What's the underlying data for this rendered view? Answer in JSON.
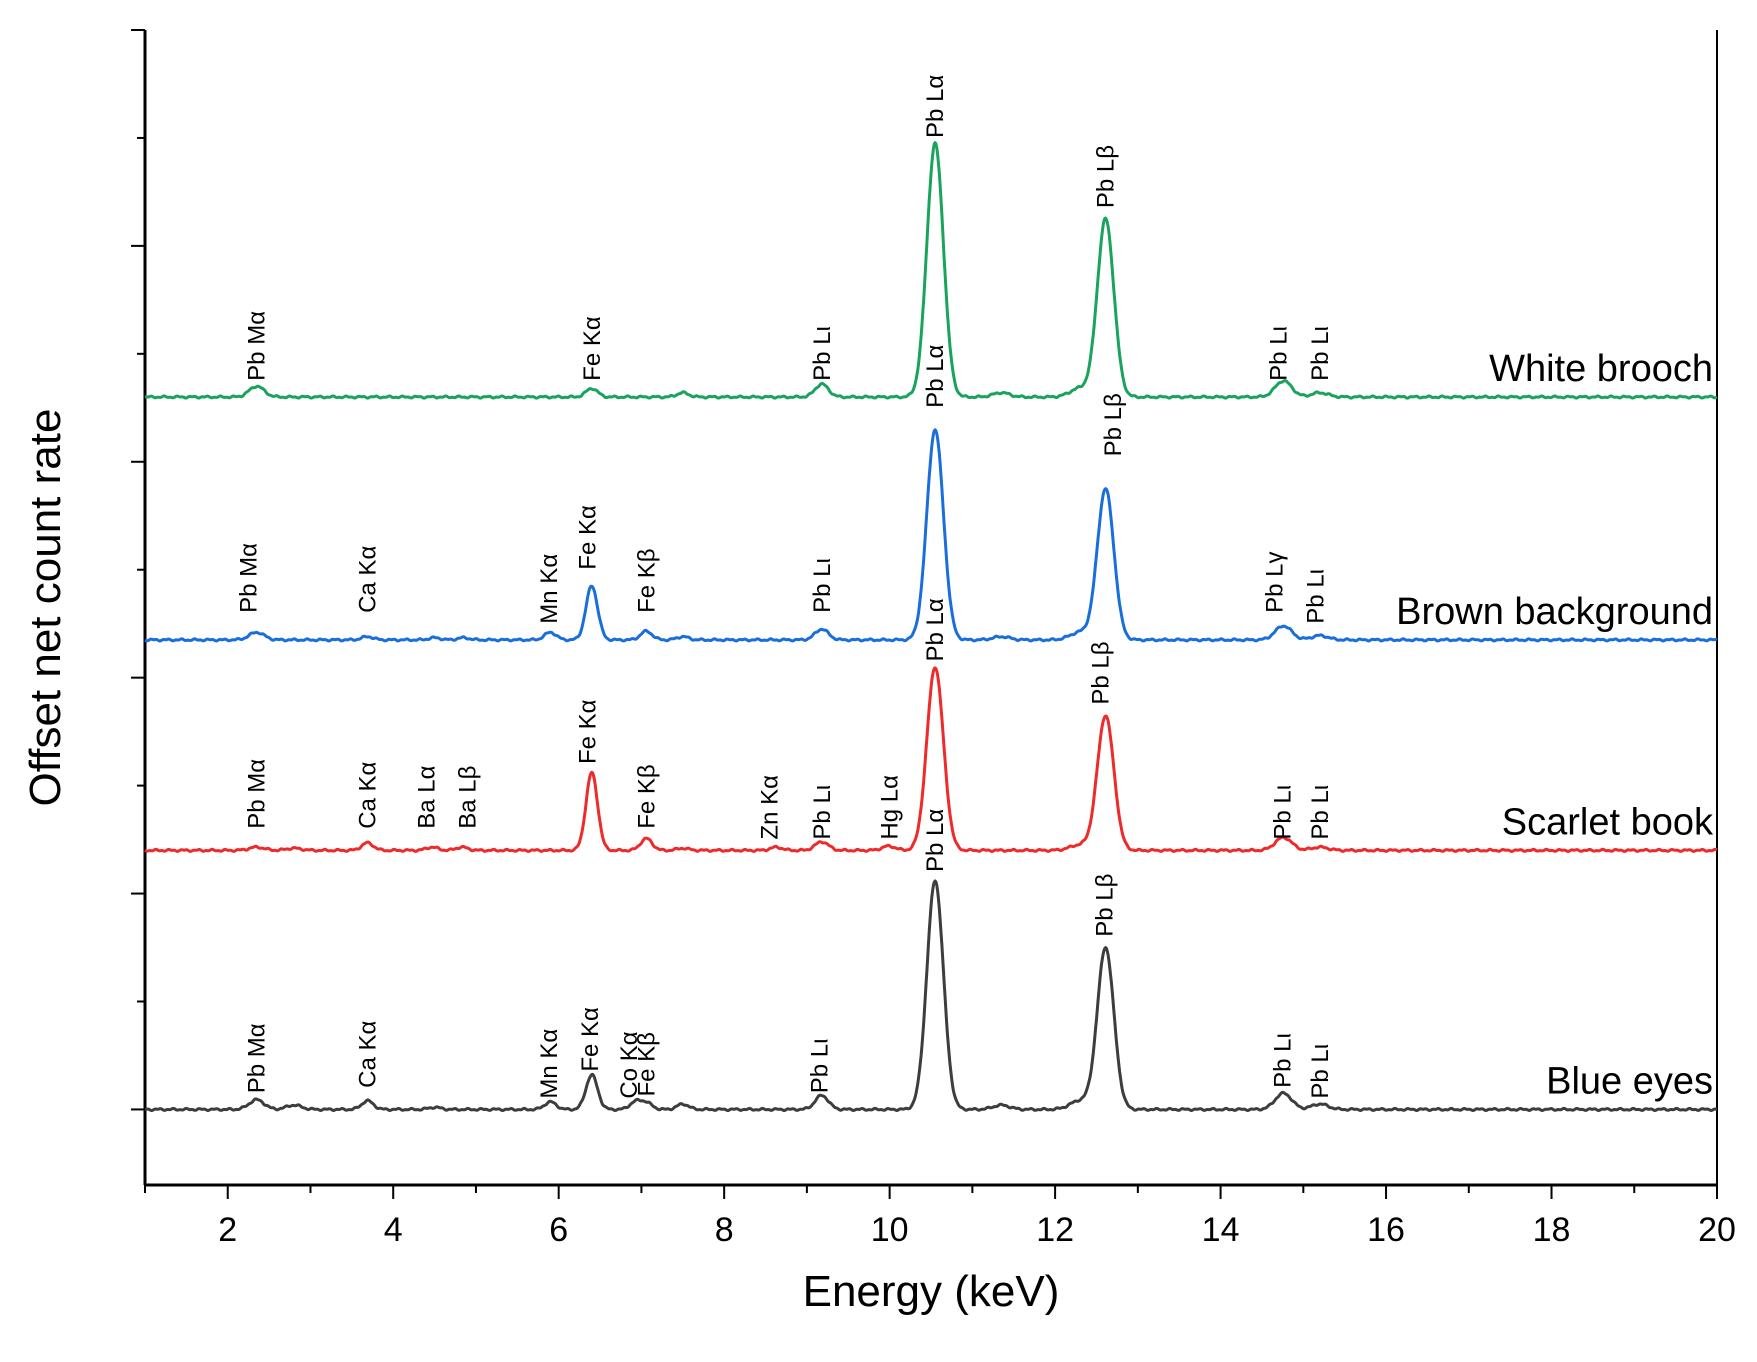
{
  "chart_data": {
    "type": "line",
    "xlabel": "Energy (keV)",
    "ylabel": "Offset net count rate",
    "xlim": [
      1,
      20
    ],
    "ylim": [
      -0.7,
      10.0
    ],
    "x_ticks": [
      2,
      4,
      6,
      8,
      10,
      12,
      14,
      16,
      18,
      20
    ],
    "y_ticks_unlabeled": [
      0,
      1,
      2,
      3,
      4,
      5,
      6,
      7,
      8,
      9,
      10
    ],
    "legend": "series labels at right end of each trace",
    "series": [
      {
        "name": "White brooch",
        "color": "#19a35c",
        "offset": 6.6,
        "peaks": [
          {
            "element": "Pb",
            "line": "Mα",
            "x": 2.35,
            "h": 0.1,
            "w": 0.09
          },
          {
            "element": "Fe",
            "line": "Kα",
            "x": 6.4,
            "h": 0.08,
            "w": 0.07
          },
          {
            "element": "",
            "line": "",
            "x": 7.5,
            "h": 0.04,
            "w": 0.07
          },
          {
            "element": "Pb",
            "line": "Lι",
            "x": 9.18,
            "h": 0.12,
            "w": 0.08
          },
          {
            "element": "Pb",
            "line": "Lα",
            "x": 10.55,
            "h": 2.35,
            "w": 0.1
          },
          {
            "element": "",
            "line": "",
            "x": 11.35,
            "h": 0.04,
            "w": 0.1
          },
          {
            "element": "Pb",
            "line": "Lβ",
            "x": 12.61,
            "h": 1.65,
            "w": 0.1
          },
          {
            "element": "",
            "line": "",
            "x": 12.3,
            "h": 0.08,
            "w": 0.12
          },
          {
            "element": "Pb",
            "line": "Lι",
            "x": 14.76,
            "h": 0.15,
            "w": 0.1
          },
          {
            "element": "Pb",
            "line": "Lι",
            "x": 15.2,
            "h": 0.04,
            "w": 0.1
          }
        ],
        "labels": [
          {
            "text": "Pb Mα",
            "x": 2.35,
            "y": 6.75
          },
          {
            "text": "Fe Kα",
            "x": 6.4,
            "y": 6.75
          },
          {
            "text": "Pb Lι",
            "x": 9.18,
            "y": 6.75
          },
          {
            "text": "Pb Lα",
            "x": 10.55,
            "y": 9.0
          },
          {
            "text": "Pb Lβ",
            "x": 12.61,
            "y": 8.35
          },
          {
            "text": "Pb Lι",
            "x": 14.7,
            "y": 6.75
          },
          {
            "text": "Pb Lι",
            "x": 15.2,
            "y": 6.75
          }
        ]
      },
      {
        "name": "Brown background",
        "color": "#1a6edb",
        "offset": 4.35,
        "peaks": [
          {
            "element": "Pb",
            "line": "Mα",
            "x": 2.35,
            "h": 0.07,
            "w": 0.09
          },
          {
            "element": "Ca",
            "line": "Kα",
            "x": 3.69,
            "h": 0.03,
            "w": 0.07
          },
          {
            "element": "",
            "line": "",
            "x": 4.5,
            "h": 0.02,
            "w": 0.07
          },
          {
            "element": "",
            "line": "",
            "x": 4.85,
            "h": 0.02,
            "w": 0.07
          },
          {
            "element": "Mn",
            "line": "Kα",
            "x": 5.9,
            "h": 0.07,
            "w": 0.07
          },
          {
            "element": "Fe",
            "line": "Kα",
            "x": 6.4,
            "h": 0.5,
            "w": 0.07
          },
          {
            "element": "Fe",
            "line": "Kβ",
            "x": 7.06,
            "h": 0.08,
            "w": 0.07
          },
          {
            "element": "",
            "line": "",
            "x": 7.5,
            "h": 0.03,
            "w": 0.07
          },
          {
            "element": "Pb",
            "line": "Lι",
            "x": 9.18,
            "h": 0.1,
            "w": 0.08
          },
          {
            "element": "Pb",
            "line": "Lα",
            "x": 10.55,
            "h": 1.95,
            "w": 0.1
          },
          {
            "element": "",
            "line": "",
            "x": 11.35,
            "h": 0.03,
            "w": 0.1
          },
          {
            "element": "Pb",
            "line": "Lβ",
            "x": 12.61,
            "h": 1.4,
            "w": 0.1
          },
          {
            "element": "",
            "line": "",
            "x": 12.3,
            "h": 0.07,
            "w": 0.12
          },
          {
            "element": "Pb",
            "line": "Lγ",
            "x": 14.76,
            "h": 0.13,
            "w": 0.1
          },
          {
            "element": "Pb",
            "line": "Lι",
            "x": 15.2,
            "h": 0.04,
            "w": 0.1
          }
        ],
        "labels": [
          {
            "text": "Pb Mα",
            "x": 2.25,
            "y": 4.6
          },
          {
            "text": "Ca Kα",
            "x": 3.69,
            "y": 4.6
          },
          {
            "text": "Mn Kα",
            "x": 5.88,
            "y": 4.5
          },
          {
            "text": "Fe Kα",
            "x": 6.35,
            "y": 5.0
          },
          {
            "text": "Fe Kβ",
            "x": 7.06,
            "y": 4.6
          },
          {
            "text": "Pb Lι",
            "x": 9.18,
            "y": 4.6
          },
          {
            "text": "Pb Lα",
            "x": 10.55,
            "y": 6.5
          },
          {
            "text": "Pb Lβ",
            "x": 12.7,
            "y": 6.05
          },
          {
            "text": "Pb Lγ",
            "x": 14.65,
            "y": 4.6
          },
          {
            "text": "Pb Lι",
            "x": 15.15,
            "y": 4.5
          }
        ]
      },
      {
        "name": "Scarlet book",
        "color": "#ee2a2a",
        "offset": 2.4,
        "peaks": [
          {
            "element": "Pb",
            "line": "Mα",
            "x": 2.35,
            "h": 0.03,
            "w": 0.09
          },
          {
            "element": "",
            "line": "",
            "x": 2.8,
            "h": 0.02,
            "w": 0.09
          },
          {
            "element": "Ca",
            "line": "Kα",
            "x": 3.69,
            "h": 0.07,
            "w": 0.07
          },
          {
            "element": "Ba",
            "line": "Lα",
            "x": 4.47,
            "h": 0.03,
            "w": 0.07
          },
          {
            "element": "Ba",
            "line": "Lβ",
            "x": 4.83,
            "h": 0.03,
            "w": 0.07
          },
          {
            "element": "Fe",
            "line": "Kα",
            "x": 6.4,
            "h": 0.72,
            "w": 0.07
          },
          {
            "element": "Fe",
            "line": "Kβ",
            "x": 7.06,
            "h": 0.11,
            "w": 0.07
          },
          {
            "element": "",
            "line": "",
            "x": 7.5,
            "h": 0.02,
            "w": 0.07
          },
          {
            "element": "Zn",
            "line": "Kα",
            "x": 8.63,
            "h": 0.03,
            "w": 0.07
          },
          {
            "element": "Pb",
            "line": "Lι",
            "x": 9.18,
            "h": 0.08,
            "w": 0.08
          },
          {
            "element": "Hg",
            "line": "Lα",
            "x": 9.99,
            "h": 0.04,
            "w": 0.08
          },
          {
            "element": "Pb",
            "line": "Lα",
            "x": 10.55,
            "h": 1.7,
            "w": 0.1
          },
          {
            "element": "Pb",
            "line": "Lβ",
            "x": 12.61,
            "h": 1.25,
            "w": 0.1
          },
          {
            "element": "",
            "line": "",
            "x": 12.3,
            "h": 0.05,
            "w": 0.12
          },
          {
            "element": "Pb",
            "line": "Lι",
            "x": 14.76,
            "h": 0.12,
            "w": 0.1
          },
          {
            "element": "Pb",
            "line": "Lι",
            "x": 15.2,
            "h": 0.03,
            "w": 0.1
          }
        ],
        "labels": [
          {
            "text": "Pb Mα",
            "x": 2.35,
            "y": 2.6
          },
          {
            "text": "Ca Kα",
            "x": 3.69,
            "y": 2.6
          },
          {
            "text": "Ba Lα",
            "x": 4.4,
            "y": 2.6
          },
          {
            "text": "Ba Lβ",
            "x": 4.9,
            "y": 2.6
          },
          {
            "text": "Fe Kα",
            "x": 6.35,
            "y": 3.2
          },
          {
            "text": "Fe Kβ",
            "x": 7.06,
            "y": 2.6
          },
          {
            "text": "Zn Kα",
            "x": 8.55,
            "y": 2.5
          },
          {
            "text": "Pb Lι",
            "x": 9.18,
            "y": 2.5
          },
          {
            "text": "Hg Lα",
            "x": 10.0,
            "y": 2.5
          },
          {
            "text": "Pb Lα",
            "x": 10.55,
            "y": 4.15
          },
          {
            "text": "Pb Lβ",
            "x": 12.55,
            "y": 3.75
          },
          {
            "text": "Pb Lι",
            "x": 14.75,
            "y": 2.5
          },
          {
            "text": "Pb Lι",
            "x": 15.2,
            "y": 2.5
          }
        ]
      },
      {
        "name": "Blue eyes",
        "color": "#3d3d3d",
        "offset": 0.0,
        "peaks": [
          {
            "element": "Pb",
            "line": "Mα",
            "x": 2.35,
            "h": 0.09,
            "w": 0.09
          },
          {
            "element": "",
            "line": "",
            "x": 2.8,
            "h": 0.04,
            "w": 0.09
          },
          {
            "element": "Ca",
            "line": "Kα",
            "x": 3.69,
            "h": 0.08,
            "w": 0.07
          },
          {
            "element": "",
            "line": "",
            "x": 4.5,
            "h": 0.02,
            "w": 0.07
          },
          {
            "element": "Mn",
            "line": "Kα",
            "x": 5.9,
            "h": 0.07,
            "w": 0.07
          },
          {
            "element": "Fe",
            "line": "Kα",
            "x": 6.4,
            "h": 0.32,
            "w": 0.07
          },
          {
            "element": "Co",
            "line": "Kα",
            "x": 6.93,
            "h": 0.07,
            "w": 0.07
          },
          {
            "element": "Fe",
            "line": "Kβ",
            "x": 7.06,
            "h": 0.06,
            "w": 0.07
          },
          {
            "element": "",
            "line": "",
            "x": 7.5,
            "h": 0.05,
            "w": 0.07
          },
          {
            "element": "Pb",
            "line": "Lι",
            "x": 9.18,
            "h": 0.13,
            "w": 0.08
          },
          {
            "element": "Pb",
            "line": "Lα",
            "x": 10.55,
            "h": 2.12,
            "w": 0.1
          },
          {
            "element": "",
            "line": "",
            "x": 11.35,
            "h": 0.04,
            "w": 0.1
          },
          {
            "element": "Pb",
            "line": "Lβ",
            "x": 12.61,
            "h": 1.5,
            "w": 0.1
          },
          {
            "element": "",
            "line": "",
            "x": 12.3,
            "h": 0.08,
            "w": 0.12
          },
          {
            "element": "Pb",
            "line": "Lι",
            "x": 14.76,
            "h": 0.15,
            "w": 0.1
          },
          {
            "element": "Pb",
            "line": "Lι",
            "x": 15.2,
            "h": 0.05,
            "w": 0.1
          }
        ],
        "labels": [
          {
            "text": "Pb Mα",
            "x": 2.35,
            "y": 0.15
          },
          {
            "text": "Ca Kα",
            "x": 3.69,
            "y": 0.2
          },
          {
            "text": "Mn Kα",
            "x": 5.88,
            "y": 0.1
          },
          {
            "text": "Fe Kα",
            "x": 6.38,
            "y": 0.35
          },
          {
            "text": "Co Kα",
            "x": 6.85,
            "y": 0.1
          },
          {
            "text": "Fe Kβ",
            "x": 7.06,
            "y": 0.12
          },
          {
            "text": "Pb Lι",
            "x": 9.15,
            "y": 0.15
          },
          {
            "text": "Pb Lα",
            "x": 10.55,
            "y": 2.2
          },
          {
            "text": "Pb Lβ",
            "x": 12.6,
            "y": 1.6
          },
          {
            "text": "Pb Lι",
            "x": 14.75,
            "y": 0.2
          },
          {
            "text": "Pb Lι",
            "x": 15.2,
            "y": 0.1
          }
        ]
      }
    ]
  }
}
